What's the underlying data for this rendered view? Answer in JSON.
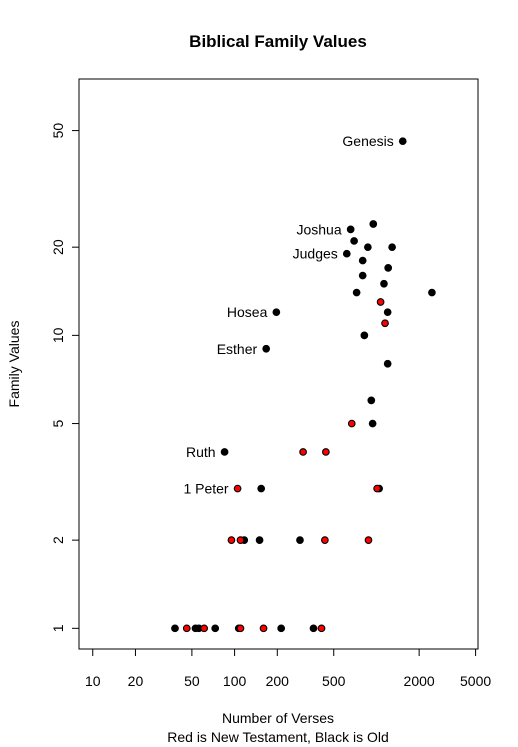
{
  "chart_data": {
    "type": "scatter",
    "title": "Biblical Family Values",
    "xlabel": "Number of Verses",
    "xlabel_line2": "Red is New Testament, Black is Old",
    "ylabel": "Family Values",
    "x_scale": "log",
    "y_scale": "log",
    "xlim": [
      8,
      5200
    ],
    "ylim": [
      0.85,
      75
    ],
    "x_ticks": [
      10,
      20,
      50,
      100,
      200,
      500,
      2000,
      5000
    ],
    "x_tick_labels": [
      "10",
      "20",
      "50",
      "100",
      "200",
      "500",
      "2000",
      "5000"
    ],
    "y_ticks": [
      1,
      2,
      5,
      10,
      20,
      50
    ],
    "y_tick_labels": [
      "1",
      "2",
      "5",
      "10",
      "20",
      "50"
    ],
    "colors": {
      "old": "#000000",
      "new": "#ff0000"
    },
    "series": [
      {
        "testament": "old",
        "points": [
          {
            "x": 1533,
            "y": 46,
            "label": "Genesis"
          },
          {
            "x": 658,
            "y": 23,
            "label": "Joshua"
          },
          {
            "x": 618,
            "y": 19,
            "label": "Judges"
          },
          {
            "x": 197,
            "y": 12,
            "label": "Hosea"
          },
          {
            "x": 167,
            "y": 9,
            "label": "Esther"
          },
          {
            "x": 85,
            "y": 4,
            "label": "Ruth"
          },
          {
            "x": 950,
            "y": 24
          },
          {
            "x": 696,
            "y": 21
          },
          {
            "x": 870,
            "y": 20
          },
          {
            "x": 1290,
            "y": 20
          },
          {
            "x": 800,
            "y": 18
          },
          {
            "x": 1210,
            "y": 17
          },
          {
            "x": 800,
            "y": 16
          },
          {
            "x": 1130,
            "y": 15
          },
          {
            "x": 2461,
            "y": 14
          },
          {
            "x": 725,
            "y": 14
          },
          {
            "x": 1200,
            "y": 12
          },
          {
            "x": 822,
            "y": 10
          },
          {
            "x": 1200,
            "y": 8
          },
          {
            "x": 920,
            "y": 6
          },
          {
            "x": 940,
            "y": 5
          },
          {
            "x": 1045,
            "y": 3
          },
          {
            "x": 154,
            "y": 3
          },
          {
            "x": 117,
            "y": 2
          },
          {
            "x": 150,
            "y": 2
          },
          {
            "x": 289,
            "y": 2
          },
          {
            "x": 38,
            "y": 1
          },
          {
            "x": 53,
            "y": 1
          },
          {
            "x": 56,
            "y": 1
          },
          {
            "x": 73,
            "y": 1
          },
          {
            "x": 107,
            "y": 1
          },
          {
            "x": 213,
            "y": 1
          },
          {
            "x": 360,
            "y": 1
          }
        ]
      },
      {
        "testament": "new",
        "points": [
          {
            "x": 105,
            "y": 3,
            "label": "1 Peter"
          },
          {
            "x": 1011,
            "y": 3
          },
          {
            "x": 1070,
            "y": 13
          },
          {
            "x": 1150,
            "y": 11
          },
          {
            "x": 670,
            "y": 5
          },
          {
            "x": 304,
            "y": 4
          },
          {
            "x": 440,
            "y": 4
          },
          {
            "x": 95,
            "y": 2
          },
          {
            "x": 110,
            "y": 2
          },
          {
            "x": 433,
            "y": 2
          },
          {
            "x": 879,
            "y": 2
          },
          {
            "x": 46,
            "y": 1
          },
          {
            "x": 61,
            "y": 1
          },
          {
            "x": 110,
            "y": 1
          },
          {
            "x": 160,
            "y": 1
          },
          {
            "x": 410,
            "y": 1
          }
        ]
      }
    ]
  }
}
